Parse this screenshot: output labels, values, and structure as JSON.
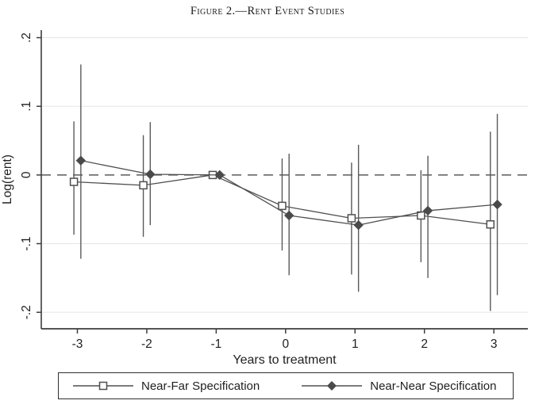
{
  "figure": {
    "title": "Figure 2.—Rent Event Studies"
  },
  "chart_data": {
    "type": "line",
    "title": "Figure 2.—Rent Event Studies",
    "xlabel": "Years to treatment",
    "ylabel": "Log(rent)",
    "x": [
      -3,
      -2,
      -1,
      0,
      1,
      2,
      3
    ],
    "xtick_labels": [
      "-3",
      "-2",
      "-1",
      "0",
      "1",
      "2",
      "3"
    ],
    "yticks": [
      -0.2,
      -0.1,
      0,
      0.1,
      0.2
    ],
    "ytick_labels": [
      "-.2",
      "-.1",
      "0",
      ".1",
      ".2"
    ],
    "xlim": [
      -3.52,
      3.49
    ],
    "ylim": [
      -0.224,
      0.211
    ],
    "grid": "horizontal-light",
    "zero_reference_line": "dashed",
    "legend_position": "bottom",
    "error_bars": true,
    "series": [
      {
        "name": "Near-Far Specification",
        "marker": "open-square",
        "x_offset": -0.05,
        "values": [
          -0.01,
          -0.015,
          0,
          -0.045,
          -0.063,
          -0.059,
          -0.072
        ],
        "ci_high": [
          0.078,
          0.058,
          null,
          0.024,
          0.018,
          0.007,
          0.063
        ],
        "ci_low": [
          -0.087,
          -0.09,
          null,
          -0.11,
          -0.145,
          -0.127,
          -0.198
        ]
      },
      {
        "name": "Near-Near Specification",
        "marker": "filled-diamond",
        "x_offset": 0.05,
        "values": [
          0.021,
          0.001,
          0,
          -0.059,
          -0.073,
          -0.052,
          -0.043
        ],
        "ci_high": [
          0.161,
          0.077,
          null,
          0.031,
          0.044,
          0.028,
          0.089
        ],
        "ci_low": [
          -0.122,
          -0.073,
          null,
          -0.146,
          -0.17,
          -0.15,
          -0.175
        ]
      }
    ],
    "colors": {
      "series_line": "#4f4f4f",
      "marker_fill": "#4a4a4a",
      "ci_whisker": "#5a5a5a",
      "axis": "#3d3d3d",
      "gridline": "#e8e8e8",
      "zero_line": "#5a5a5a",
      "text": "#1f1f1f",
      "background": "#ffffff",
      "legend_border": "#2f2f2f"
    }
  }
}
